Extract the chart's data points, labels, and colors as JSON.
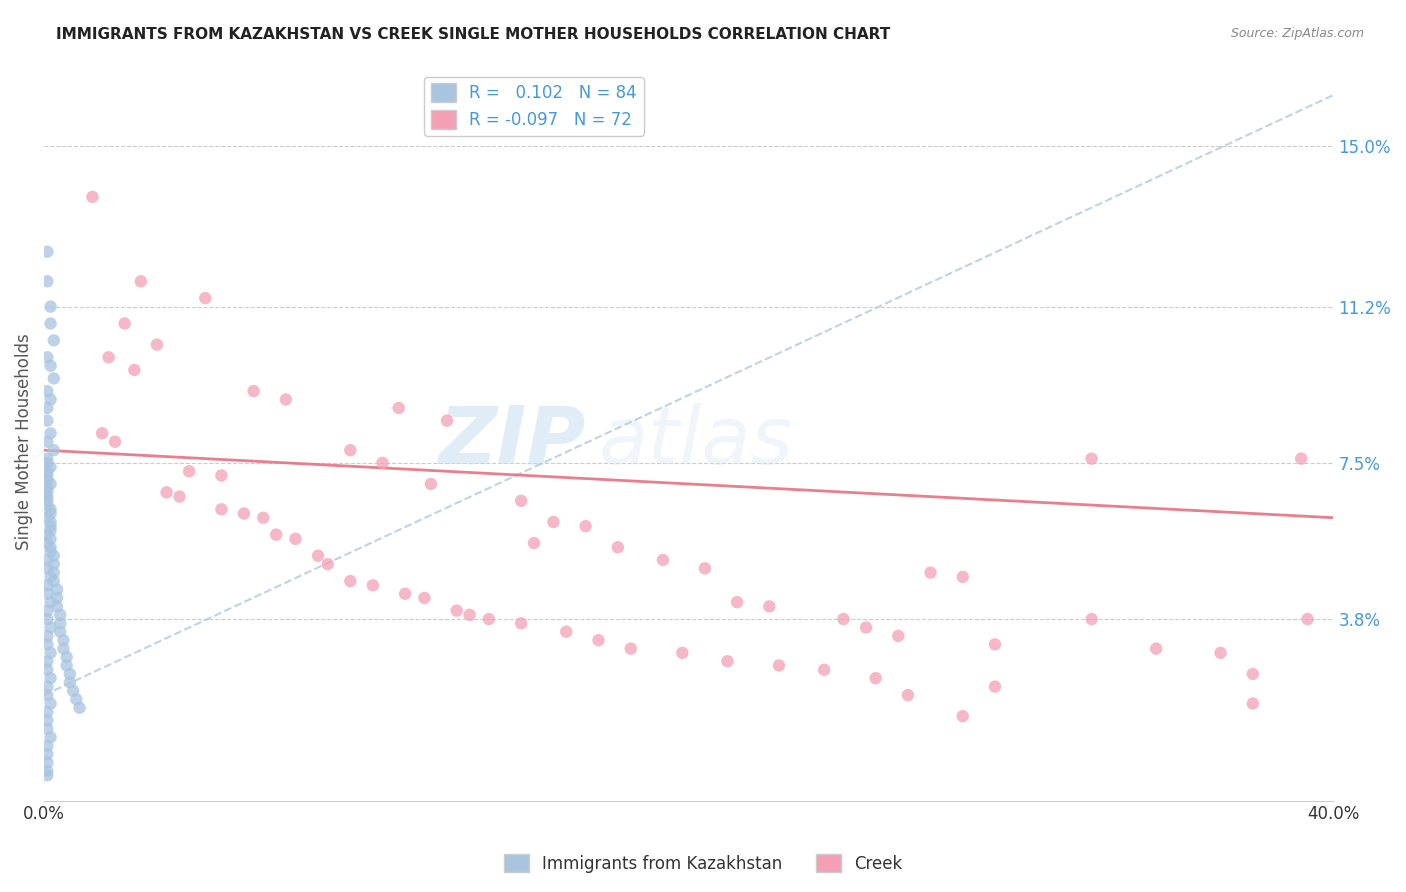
{
  "title": "IMMIGRANTS FROM KAZAKHSTAN VS CREEK SINGLE MOTHER HOUSEHOLDS CORRELATION CHART",
  "source": "Source: ZipAtlas.com",
  "ylabel": "Single Mother Households",
  "ytick_labels": [
    "15.0%",
    "11.2%",
    "7.5%",
    "3.8%"
  ],
  "ytick_values": [
    0.15,
    0.112,
    0.075,
    0.038
  ],
  "xlim": [
    0.0,
    0.4
  ],
  "ylim": [
    -0.005,
    0.165
  ],
  "color_blue": "#a8c4e0",
  "color_pink": "#f4a0b4",
  "trendline_blue_color": "#a0b8d0",
  "trendline_pink_color": "#e87080",
  "watermark_zip": "ZIP",
  "watermark_atlas": "atlas",
  "blue_scatter": [
    [
      0.001,
      0.125
    ],
    [
      0.001,
      0.118
    ],
    [
      0.002,
      0.112
    ],
    [
      0.002,
      0.108
    ],
    [
      0.003,
      0.104
    ],
    [
      0.001,
      0.1
    ],
    [
      0.002,
      0.098
    ],
    [
      0.003,
      0.095
    ],
    [
      0.001,
      0.092
    ],
    [
      0.002,
      0.09
    ],
    [
      0.001,
      0.088
    ],
    [
      0.001,
      0.085
    ],
    [
      0.002,
      0.082
    ],
    [
      0.001,
      0.08
    ],
    [
      0.003,
      0.078
    ],
    [
      0.001,
      0.076
    ],
    [
      0.002,
      0.074
    ],
    [
      0.001,
      0.072
    ],
    [
      0.002,
      0.07
    ],
    [
      0.001,
      0.068
    ],
    [
      0.001,
      0.066
    ],
    [
      0.002,
      0.064
    ],
    [
      0.001,
      0.062
    ],
    [
      0.002,
      0.06
    ],
    [
      0.001,
      0.058
    ],
    [
      0.001,
      0.056
    ],
    [
      0.002,
      0.054
    ],
    [
      0.001,
      0.052
    ],
    [
      0.001,
      0.05
    ],
    [
      0.002,
      0.048
    ],
    [
      0.001,
      0.046
    ],
    [
      0.001,
      0.044
    ],
    [
      0.002,
      0.042
    ],
    [
      0.001,
      0.04
    ],
    [
      0.001,
      0.038
    ],
    [
      0.002,
      0.036
    ],
    [
      0.001,
      0.034
    ],
    [
      0.001,
      0.032
    ],
    [
      0.002,
      0.03
    ],
    [
      0.001,
      0.028
    ],
    [
      0.001,
      0.026
    ],
    [
      0.002,
      0.024
    ],
    [
      0.001,
      0.022
    ],
    [
      0.001,
      0.02
    ],
    [
      0.002,
      0.018
    ],
    [
      0.001,
      0.016
    ],
    [
      0.001,
      0.014
    ],
    [
      0.001,
      0.012
    ],
    [
      0.002,
      0.01
    ],
    [
      0.001,
      0.008
    ],
    [
      0.001,
      0.006
    ],
    [
      0.001,
      0.004
    ],
    [
      0.001,
      0.002
    ],
    [
      0.001,
      0.001
    ],
    [
      0.001,
      0.075
    ],
    [
      0.001,
      0.073
    ],
    [
      0.001,
      0.071
    ],
    [
      0.001,
      0.069
    ],
    [
      0.001,
      0.067
    ],
    [
      0.001,
      0.065
    ],
    [
      0.002,
      0.063
    ],
    [
      0.002,
      0.061
    ],
    [
      0.002,
      0.059
    ],
    [
      0.002,
      0.057
    ],
    [
      0.002,
      0.055
    ],
    [
      0.003,
      0.053
    ],
    [
      0.003,
      0.051
    ],
    [
      0.003,
      0.049
    ],
    [
      0.003,
      0.047
    ],
    [
      0.004,
      0.045
    ],
    [
      0.004,
      0.043
    ],
    [
      0.004,
      0.041
    ],
    [
      0.005,
      0.039
    ],
    [
      0.005,
      0.037
    ],
    [
      0.005,
      0.035
    ],
    [
      0.006,
      0.033
    ],
    [
      0.006,
      0.031
    ],
    [
      0.007,
      0.029
    ],
    [
      0.007,
      0.027
    ],
    [
      0.008,
      0.025
    ],
    [
      0.008,
      0.023
    ],
    [
      0.009,
      0.021
    ],
    [
      0.01,
      0.019
    ],
    [
      0.011,
      0.017
    ]
  ],
  "pink_scatter": [
    [
      0.015,
      0.138
    ],
    [
      0.03,
      0.118
    ],
    [
      0.05,
      0.114
    ],
    [
      0.025,
      0.108
    ],
    [
      0.035,
      0.103
    ],
    [
      0.02,
      0.1
    ],
    [
      0.028,
      0.097
    ],
    [
      0.065,
      0.092
    ],
    [
      0.075,
      0.09
    ],
    [
      0.11,
      0.088
    ],
    [
      0.125,
      0.085
    ],
    [
      0.018,
      0.082
    ],
    [
      0.022,
      0.08
    ],
    [
      0.095,
      0.078
    ],
    [
      0.105,
      0.075
    ],
    [
      0.045,
      0.073
    ],
    [
      0.055,
      0.072
    ],
    [
      0.12,
      0.07
    ],
    [
      0.038,
      0.068
    ],
    [
      0.042,
      0.067
    ],
    [
      0.148,
      0.066
    ],
    [
      0.055,
      0.064
    ],
    [
      0.062,
      0.063
    ],
    [
      0.068,
      0.062
    ],
    [
      0.158,
      0.061
    ],
    [
      0.168,
      0.06
    ],
    [
      0.072,
      0.058
    ],
    [
      0.078,
      0.057
    ],
    [
      0.152,
      0.056
    ],
    [
      0.178,
      0.055
    ],
    [
      0.085,
      0.053
    ],
    [
      0.192,
      0.052
    ],
    [
      0.088,
      0.051
    ],
    [
      0.205,
      0.05
    ],
    [
      0.275,
      0.049
    ],
    [
      0.285,
      0.048
    ],
    [
      0.095,
      0.047
    ],
    [
      0.102,
      0.046
    ],
    [
      0.112,
      0.044
    ],
    [
      0.118,
      0.043
    ],
    [
      0.215,
      0.042
    ],
    [
      0.225,
      0.041
    ],
    [
      0.128,
      0.04
    ],
    [
      0.132,
      0.039
    ],
    [
      0.138,
      0.038
    ],
    [
      0.248,
      0.038
    ],
    [
      0.325,
      0.038
    ],
    [
      0.392,
      0.038
    ],
    [
      0.148,
      0.037
    ],
    [
      0.255,
      0.036
    ],
    [
      0.162,
      0.035
    ],
    [
      0.265,
      0.034
    ],
    [
      0.172,
      0.033
    ],
    [
      0.295,
      0.032
    ],
    [
      0.182,
      0.031
    ],
    [
      0.345,
      0.031
    ],
    [
      0.198,
      0.03
    ],
    [
      0.365,
      0.03
    ],
    [
      0.212,
      0.028
    ],
    [
      0.228,
      0.027
    ],
    [
      0.242,
      0.026
    ],
    [
      0.375,
      0.025
    ],
    [
      0.258,
      0.024
    ],
    [
      0.295,
      0.022
    ],
    [
      0.268,
      0.02
    ],
    [
      0.375,
      0.018
    ],
    [
      0.285,
      0.015
    ],
    [
      0.325,
      0.076
    ],
    [
      0.39,
      0.076
    ]
  ]
}
